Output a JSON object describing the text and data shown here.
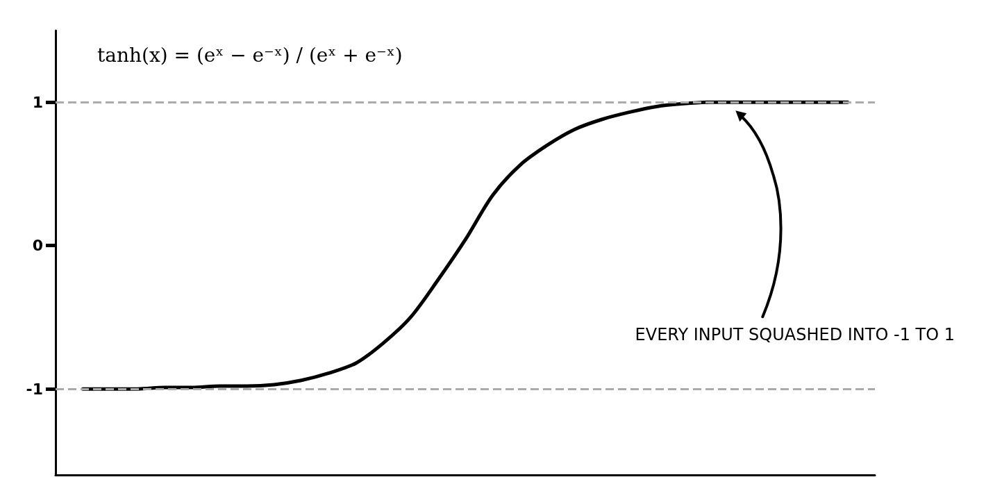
{
  "chart_data": {
    "type": "line",
    "title": "tanh(x) = (eˣ − e⁻ˣ) / (eˣ + e⁻ˣ)",
    "categories": [
      null,
      null,
      null,
      null,
      null,
      null,
      null,
      null,
      null,
      null,
      null,
      null,
      null,
      null,
      null,
      null,
      null,
      null,
      null,
      null,
      null,
      null,
      null,
      null,
      null,
      null,
      null,
      null,
      null,
      null,
      null
    ],
    "series": [
      {
        "color": "#000000",
        "values": [
          null,
          -1,
          -1,
          -1,
          -0.99,
          -0.99,
          -0.98,
          -0.98,
          -0.97,
          -0.94,
          -0.89,
          -0.82,
          -0.68,
          -0.5,
          -0.24,
          0.04,
          0.35,
          0.56,
          0.7,
          0.81,
          0.88,
          0.93,
          0.97,
          0.99,
          1,
          1,
          1,
          1,
          1,
          1,
          null
        ]
      }
    ],
    "ylim": [
      -1.6,
      1.5
    ],
    "yticks": [
      -1,
      0,
      1
    ],
    "ref_lines": [
      {
        "axis": "y",
        "value": 1,
        "color": "#aaaaaa",
        "line_style": "dashed"
      },
      {
        "axis": "y",
        "value": -1,
        "color": "#aaaaaa",
        "line_style": "dashed"
      }
    ],
    "annotations": [
      "EVERY INPUT SQUASHED INTO -1 TO 1"
    ],
    "grid": false,
    "marker": "none",
    "line_style": "solid",
    "tick_labels": "y"
  }
}
